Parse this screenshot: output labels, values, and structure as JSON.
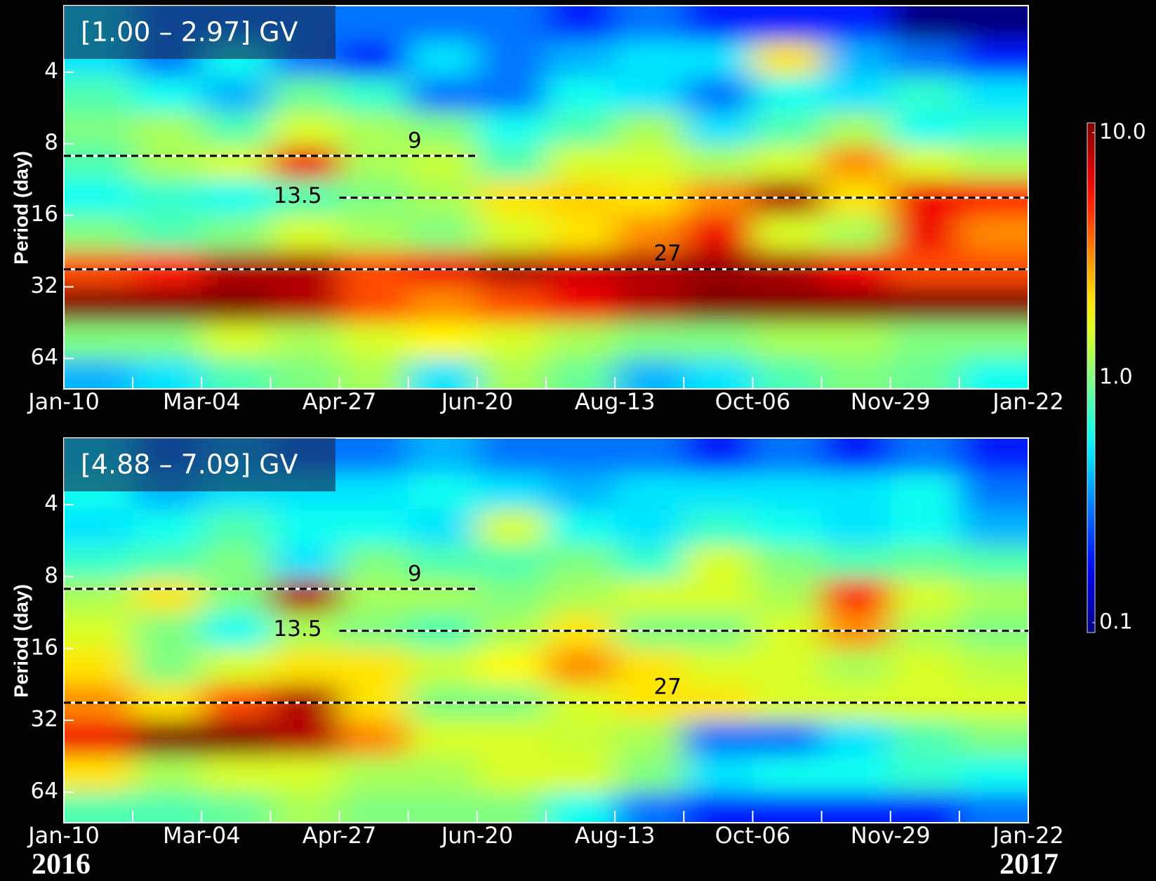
{
  "chart_data": [
    {
      "type": "heatmap",
      "title": "[1.00 – 2.97] GV",
      "ylabel": "Period (day)",
      "xlim": [
        0,
        378
      ],
      "xticks": [
        {
          "value": 0,
          "label": "Jan-10"
        },
        {
          "value": 54,
          "label": "Mar-04"
        },
        {
          "value": 108,
          "label": "Apr-27"
        },
        {
          "value": 162,
          "label": "Jun-20"
        },
        {
          "value": 216,
          "label": "Aug-13"
        },
        {
          "value": 270,
          "label": "Oct-06"
        },
        {
          "value": 324,
          "label": "Nov-29"
        },
        {
          "value": 378,
          "label": "Jan-22"
        }
      ],
      "xminorticks": [
        27,
        81,
        135,
        189,
        243,
        297,
        351
      ],
      "ylim": [
        2.1,
        86
      ],
      "ylog": true,
      "yinverted": false,
      "yticks": [
        4,
        8,
        16,
        32,
        64
      ],
      "colormap": "jet",
      "clim": [
        0.1,
        10
      ],
      "clog": true,
      "times": [
        13.5,
        40.5,
        67.5,
        94.5,
        121.5,
        148.5,
        175.5,
        202.5,
        229.5,
        256.5,
        283.5,
        310.5,
        337.5,
        364.5
      ],
      "periods": [
        2.5,
        3.5,
        5,
        7,
        9.5,
        13.5,
        19,
        27,
        38,
        54,
        76
      ],
      "power": [
        [
          0.5,
          0.3,
          0.3,
          0.3,
          0.3,
          0.3,
          0.3,
          0.2,
          0.3,
          0.2,
          0.2,
          0.2,
          0.1,
          0.1
        ],
        [
          0.5,
          0.3,
          0.6,
          0.3,
          0.2,
          0.5,
          0.3,
          0.4,
          0.5,
          0.5,
          2,
          0.4,
          0.3,
          0.2
        ],
        [
          0.8,
          0.6,
          0.4,
          0.9,
          0.7,
          0.3,
          0.3,
          0.6,
          0.5,
          0.3,
          0.6,
          0.5,
          0.7,
          0.5
        ],
        [
          1,
          1.2,
          0.8,
          1.5,
          1.2,
          1,
          0.6,
          0.8,
          1.2,
          0.5,
          0.8,
          1.2,
          0.6,
          0.7
        ],
        [
          0.8,
          1.2,
          1.5,
          6,
          1.2,
          1.4,
          0.8,
          1.5,
          1.5,
          1.2,
          1.5,
          3,
          1.5,
          1.2
        ],
        [
          0.6,
          0.7,
          0.6,
          0.8,
          1,
          1.2,
          2,
          2.2,
          2,
          3,
          8,
          2,
          6,
          5
        ],
        [
          1,
          0.8,
          1,
          1.5,
          1.2,
          1,
          1.5,
          2,
          3,
          6,
          1.5,
          1.2,
          6,
          3
        ],
        [
          4,
          5,
          8,
          8,
          4,
          6,
          8,
          7,
          8,
          9,
          8,
          6,
          4,
          4
        ],
        [
          10,
          10,
          10,
          8,
          4,
          3,
          4,
          6,
          8,
          10,
          10,
          10,
          10,
          10
        ],
        [
          1,
          1,
          1.5,
          1.2,
          1.5,
          1.8,
          1.5,
          1.2,
          1,
          1,
          1.2,
          1.2,
          1,
          1
        ],
        [
          0.4,
          0.5,
          0.8,
          1,
          1.2,
          0.5,
          1.2,
          0.9,
          0.4,
          0.5,
          0.8,
          1,
          0.9,
          0.6
        ]
      ],
      "hlines": [
        {
          "value": 9,
          "xrange": [
            0,
            162
          ]
        },
        {
          "value": 13.5,
          "xrange": [
            108,
            378
          ]
        },
        {
          "value": 27,
          "xrange": [
            0,
            378
          ]
        }
      ],
      "colorbar": {
        "lim": [
          0.1,
          10
        ],
        "log": true,
        "ticks": [
          0.1,
          {
            "value": 1,
            "label": "1.0"
          },
          {
            "value": 10,
            "label": "10.0"
          }
        ]
      }
    },
    {
      "type": "heatmap",
      "title": "[4.88 – 7.09] GV",
      "ylabel": "Period (day)",
      "xlim": [
        0,
        378
      ],
      "xticks": [
        {
          "value": 0,
          "label": "Jan-10"
        },
        {
          "value": 54,
          "label": "Mar-04"
        },
        {
          "value": 108,
          "label": "Apr-27"
        },
        {
          "value": 162,
          "label": "Jun-20"
        },
        {
          "value": 216,
          "label": "Aug-13"
        },
        {
          "value": 270,
          "label": "Oct-06"
        },
        {
          "value": 324,
          "label": "Nov-29"
        },
        {
          "value": 378,
          "label": "Jan-22"
        }
      ],
      "xminorticks": [
        27,
        81,
        135,
        189,
        243,
        297,
        351
      ],
      "ylim": [
        2.1,
        86
      ],
      "ylog": true,
      "yinverted": false,
      "yticks": [
        4,
        8,
        16,
        32,
        64
      ],
      "colormap": "jet",
      "clim": [
        0.1,
        10
      ],
      "clog": true,
      "times": [
        13.5,
        40.5,
        67.5,
        94.5,
        121.5,
        148.5,
        175.5,
        202.5,
        229.5,
        256.5,
        283.5,
        310.5,
        337.5,
        364.5
      ],
      "periods": [
        2.5,
        3.5,
        5,
        7,
        9.5,
        13.5,
        19,
        27,
        38,
        54,
        76
      ],
      "power": [
        [
          0.5,
          0.3,
          0.4,
          0.3,
          0.3,
          0.4,
          0.3,
          0.3,
          0.3,
          0.2,
          0.3,
          0.2,
          0.3,
          0.2
        ],
        [
          0.6,
          0.4,
          0.5,
          0.5,
          0.5,
          0.6,
          0.5,
          0.4,
          0.5,
          0.5,
          0.5,
          0.5,
          0.6,
          0.3
        ],
        [
          0.5,
          0.6,
          0.8,
          0.6,
          0.6,
          0.5,
          1.5,
          0.6,
          0.5,
          0.7,
          0.6,
          0.5,
          0.6,
          0.4
        ],
        [
          0.7,
          0.8,
          1,
          0.5,
          1,
          0.8,
          0.8,
          1,
          0.7,
          1.5,
          1,
          0.8,
          0.9,
          0.8
        ],
        [
          1.2,
          2,
          1,
          8,
          1.2,
          1.2,
          1,
          1.2,
          1.5,
          1.5,
          1.2,
          5,
          1.5,
          1.2
        ],
        [
          1.5,
          1,
          0.6,
          1.2,
          1,
          0.8,
          1.2,
          2,
          1,
          1,
          1.5,
          3,
          1.2,
          1
        ],
        [
          2,
          1,
          1.5,
          2,
          2,
          1.4,
          1.8,
          3,
          2,
          1.5,
          1.5,
          1.2,
          1.5,
          1.3
        ],
        [
          3,
          2,
          4,
          8,
          2,
          1,
          1,
          1.5,
          2,
          2,
          1.5,
          1.5,
          1.5,
          1.5
        ],
        [
          6,
          10,
          10,
          8,
          3,
          1.5,
          1.5,
          1.4,
          1.2,
          0.3,
          0.3,
          0.5,
          0.8,
          1
        ],
        [
          2,
          1.2,
          1.5,
          1.5,
          1.2,
          1.2,
          1.5,
          1.5,
          1,
          0.5,
          0.6,
          0.6,
          0.7,
          0.6
        ],
        [
          0.8,
          0.8,
          0.9,
          1.2,
          1,
          1,
          1,
          0.6,
          0.3,
          0.2,
          0.2,
          0.2,
          0.2,
          0.3
        ]
      ],
      "hlines": [
        {
          "value": 9,
          "xrange": [
            0,
            162
          ]
        },
        {
          "value": 13.5,
          "xrange": [
            108,
            378
          ]
        },
        {
          "value": 27,
          "xrange": [
            0,
            378
          ]
        }
      ],
      "annotations": [
        "2016",
        "2017"
      ]
    }
  ]
}
